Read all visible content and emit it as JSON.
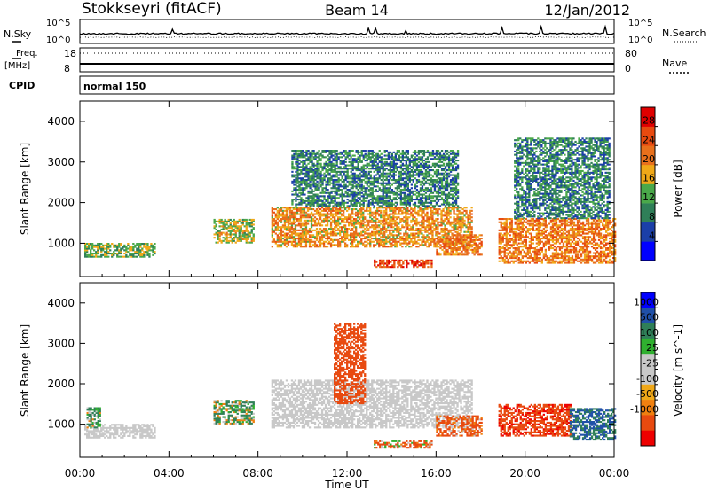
{
  "header": {
    "station": "Stokkseyri (fitACF)",
    "beam": "Beam 14",
    "date": "12/Jan/2012"
  },
  "noise_panel": {
    "left_label": "N.Sky",
    "right_label": "N.Search",
    "left_ticks": [
      "10^5",
      "10^0"
    ],
    "right_ticks": [
      "10^5",
      "10^0"
    ]
  },
  "freq_panel": {
    "left_label_1": "Freq.",
    "left_label_2": "[MHz]",
    "right_label": "Nave",
    "left_ticks": [
      "18",
      "8"
    ],
    "right_ticks": [
      "80",
      "0"
    ]
  },
  "cpid": {
    "label": "CPID",
    "mode": "normal 150"
  },
  "colors": {
    "power": [
      "#0000ff",
      "#1b3fa8",
      "#2f7f58",
      "#4aa84a",
      "#f0a818",
      "#e8701c",
      "#e84a10",
      "#e00000"
    ],
    "velocity": [
      "#ee0000",
      "#e84a10",
      "#f08010",
      "#f0a818",
      "#c8c8c8",
      "#c8c8c8",
      "#30b030",
      "#2f7f58",
      "#2050a8",
      "#0000ff"
    ],
    "ground_scatter": "#c8c8c8"
  },
  "chart_data": [
    {
      "type": "heatmap",
      "title": "Power",
      "x": [
        "00:00",
        "04:00",
        "08:00",
        "12:00",
        "16:00",
        "20:00",
        "00:00"
      ],
      "xlim_hours": [
        0,
        24
      ],
      "ylabel": "Slant Range [km]",
      "ylim": [
        180,
        4500
      ],
      "yticks": [
        "1000",
        "2000",
        "3000",
        "4000"
      ],
      "colorbar_label": "Power [dB]",
      "colorbar_ticks": [
        "4",
        "8",
        "12",
        "16",
        "20",
        "24",
        "28"
      ],
      "colorbar_range": [
        0,
        32
      ],
      "scatter_regions": [
        {
          "t_start": 0.2,
          "t_end": 3.4,
          "range_min": 650,
          "range_max": 1000,
          "value": 14
        },
        {
          "t_start": 6.0,
          "t_end": 7.8,
          "range_min": 1000,
          "range_max": 1600,
          "value": 16
        },
        {
          "t_start": 8.6,
          "t_end": 17.6,
          "range_min": 900,
          "range_max": 1900,
          "value": 20
        },
        {
          "t_start": 9.5,
          "t_end": 17.0,
          "range_min": 1900,
          "range_max": 3300,
          "value": 10
        },
        {
          "t_start": 13.2,
          "t_end": 15.8,
          "range_min": 400,
          "range_max": 600,
          "value": 26
        },
        {
          "t_start": 16.0,
          "t_end": 18.0,
          "range_min": 700,
          "range_max": 1200,
          "value": 22
        },
        {
          "t_start": 18.8,
          "t_end": 24.0,
          "range_min": 500,
          "range_max": 1600,
          "value": 22
        },
        {
          "t_start": 19.5,
          "t_end": 23.8,
          "range_min": 1600,
          "range_max": 3600,
          "value": 10
        }
      ]
    },
    {
      "type": "heatmap",
      "title": "Velocity",
      "x": [
        "00:00",
        "04:00",
        "08:00",
        "12:00",
        "16:00",
        "20:00",
        "00:00"
      ],
      "xlim_hours": [
        0,
        24
      ],
      "xlabel": "Time UT",
      "ylabel": "Slant Range [km]",
      "ylim": [
        180,
        4500
      ],
      "yticks": [
        "1000",
        "2000",
        "3000",
        "4000"
      ],
      "colorbar_label": "Velocity [m s^-1]",
      "colorbar_ticks": [
        "1000",
        "500",
        "100",
        "25",
        "-25",
        "-100",
        "-500",
        "-1000"
      ],
      "scatter_regions": [
        {
          "t_start": 0.2,
          "t_end": 3.4,
          "range_min": 650,
          "range_max": 1000,
          "value": "ground"
        },
        {
          "t_start": 0.3,
          "t_end": 0.9,
          "range_min": 900,
          "range_max": 1400,
          "value": 150
        },
        {
          "t_start": 6.0,
          "t_end": 7.8,
          "range_min": 1000,
          "range_max": 1600,
          "value": 100
        },
        {
          "t_start": 8.6,
          "t_end": 17.6,
          "range_min": 900,
          "range_max": 2100,
          "value": "ground"
        },
        {
          "t_start": 11.4,
          "t_end": 12.8,
          "range_min": 1500,
          "range_max": 3500,
          "value": -300
        },
        {
          "t_start": 13.2,
          "t_end": 15.8,
          "range_min": 400,
          "range_max": 600,
          "value": -100
        },
        {
          "t_start": 16.0,
          "t_end": 18.0,
          "range_min": 700,
          "range_max": 1200,
          "value": -200
        },
        {
          "t_start": 18.8,
          "t_end": 22.0,
          "range_min": 700,
          "range_max": 1500,
          "value": -400
        },
        {
          "t_start": 22.0,
          "t_end": 24.0,
          "range_min": 600,
          "range_max": 1400,
          "value": 500
        }
      ]
    }
  ]
}
